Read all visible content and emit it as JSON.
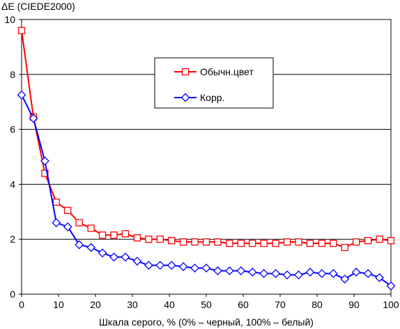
{
  "chart_data": {
    "type": "line",
    "ylabel": "ΔE (CIEDE2000)",
    "xlabel": "Шкала серого, % (0% – черный, 100% – белый)",
    "xlim": [
      0,
      100
    ],
    "ylim": [
      0,
      10
    ],
    "xticks": [
      0,
      10,
      20,
      30,
      40,
      50,
      60,
      70,
      80,
      90,
      100
    ],
    "yticks": [
      0,
      2,
      4,
      6,
      8,
      10
    ],
    "grid": "horizontal",
    "legend_position": "top-right",
    "series": [
      {
        "name": "Обычн.цвет",
        "color": "#ff0000",
        "marker": "square",
        "x": [
          0,
          3.2,
          6.3,
          9.4,
          12.5,
          15.6,
          18.8,
          21.9,
          25,
          28.1,
          31.3,
          34.4,
          37.5,
          40.6,
          43.8,
          46.9,
          50,
          53.1,
          56.3,
          59.4,
          62.5,
          65.6,
          68.8,
          71.9,
          75,
          78.1,
          81.3,
          84.4,
          87.5,
          90.6,
          93.8,
          96.9,
          100
        ],
        "values": [
          9.6,
          6.45,
          4.4,
          3.35,
          3.05,
          2.6,
          2.4,
          2.15,
          2.15,
          2.2,
          2.05,
          2.0,
          2.0,
          1.95,
          1.9,
          1.9,
          1.9,
          1.9,
          1.85,
          1.85,
          1.85,
          1.85,
          1.85,
          1.9,
          1.9,
          1.85,
          1.85,
          1.85,
          1.7,
          1.9,
          1.95,
          2.0,
          1.95
        ]
      },
      {
        "name": "Корр.",
        "color": "#0000ff",
        "marker": "diamond",
        "x": [
          0,
          3.2,
          6.3,
          9.4,
          12.5,
          15.6,
          18.8,
          21.9,
          25,
          28.1,
          31.3,
          34.4,
          37.5,
          40.6,
          43.8,
          46.9,
          50,
          53.1,
          56.3,
          59.4,
          62.5,
          65.6,
          68.8,
          71.9,
          75,
          78.1,
          81.3,
          84.4,
          87.5,
          90.6,
          93.8,
          96.9,
          100
        ],
        "values": [
          7.25,
          6.4,
          4.85,
          2.6,
          2.45,
          1.8,
          1.7,
          1.5,
          1.35,
          1.35,
          1.2,
          1.05,
          1.05,
          1.05,
          1.0,
          0.95,
          0.95,
          0.85,
          0.85,
          0.85,
          0.8,
          0.75,
          0.75,
          0.7,
          0.7,
          0.8,
          0.75,
          0.75,
          0.55,
          0.8,
          0.75,
          0.6,
          0.3
        ]
      }
    ]
  }
}
